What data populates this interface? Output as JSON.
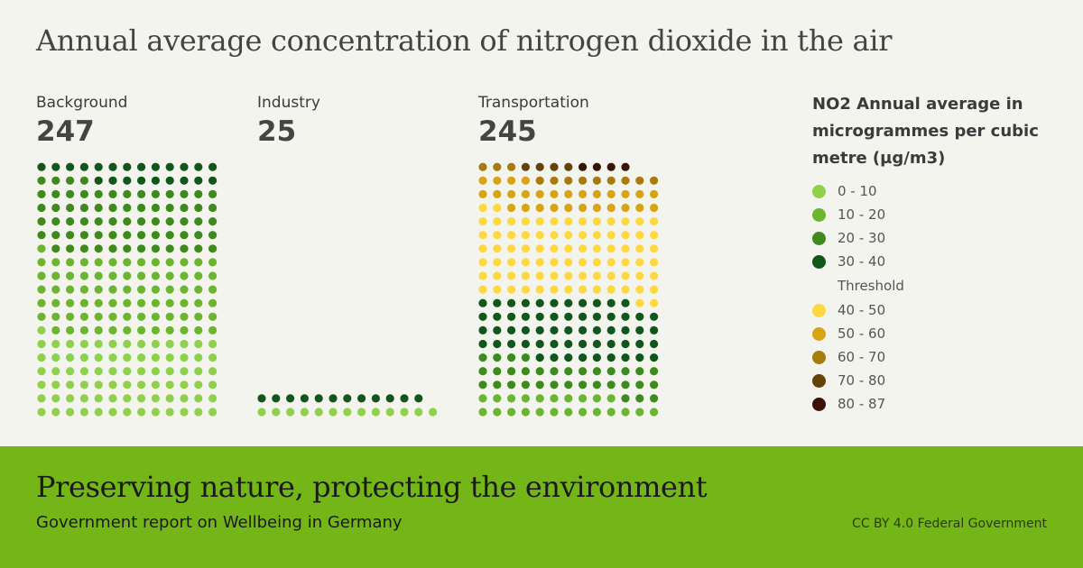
{
  "title": "Annual average concentration of nitrogen dioxide in the air",
  "chart_data": {
    "type": "waffle",
    "unit": "NO2 Annual average in microgrammes per cubic metre (µg/m3)",
    "bins": [
      {
        "label": "0 - 10",
        "color": "#8fd14b"
      },
      {
        "label": "10 - 20",
        "color": "#6cb52f"
      },
      {
        "label": "20 - 30",
        "color": "#3f8a1c"
      },
      {
        "label": "30 - 40",
        "color": "#12561a"
      },
      {
        "label": "40 - 50",
        "color": "#fdd941"
      },
      {
        "label": "50 - 60",
        "color": "#d9a316"
      },
      {
        "label": "60 - 70",
        "color": "#a77b0c"
      },
      {
        "label": "70 - 80",
        "color": "#66420b"
      },
      {
        "label": "80 - 87",
        "color": "#3a1208"
      }
    ],
    "threshold_label": "Threshold",
    "categories": [
      "Background",
      "Industry",
      "Transportation"
    ],
    "series": [
      {
        "name": "Background",
        "total": 247,
        "counts": [
          79,
          78,
          68,
          22,
          0,
          0,
          0,
          0,
          0
        ]
      },
      {
        "name": "Industry",
        "total": 25,
        "counts": [
          13,
          0,
          0,
          12,
          0,
          0,
          0,
          0,
          0
        ]
      },
      {
        "name": "Transportation",
        "total": 245,
        "counts": [
          0,
          23,
          33,
          59,
          82,
          28,
          12,
          4,
          4
        ]
      }
    ]
  },
  "legend": {
    "title": "NO2 Annual average in microgrammes per cubic metre (µg/m3)",
    "items_below": [
      "0 - 10",
      "10 - 20",
      "20 - 30",
      "30 - 40"
    ],
    "threshold": "Threshold",
    "items_above": [
      "40 - 50",
      "50 - 60",
      "60 - 70",
      "70 - 80",
      "80 - 87"
    ]
  },
  "footer": {
    "title": "Preserving nature, protecting the environment",
    "subtitle": "Government report on Wellbeing in Germany",
    "credit": "CC BY 4.0 Federal Government"
  }
}
